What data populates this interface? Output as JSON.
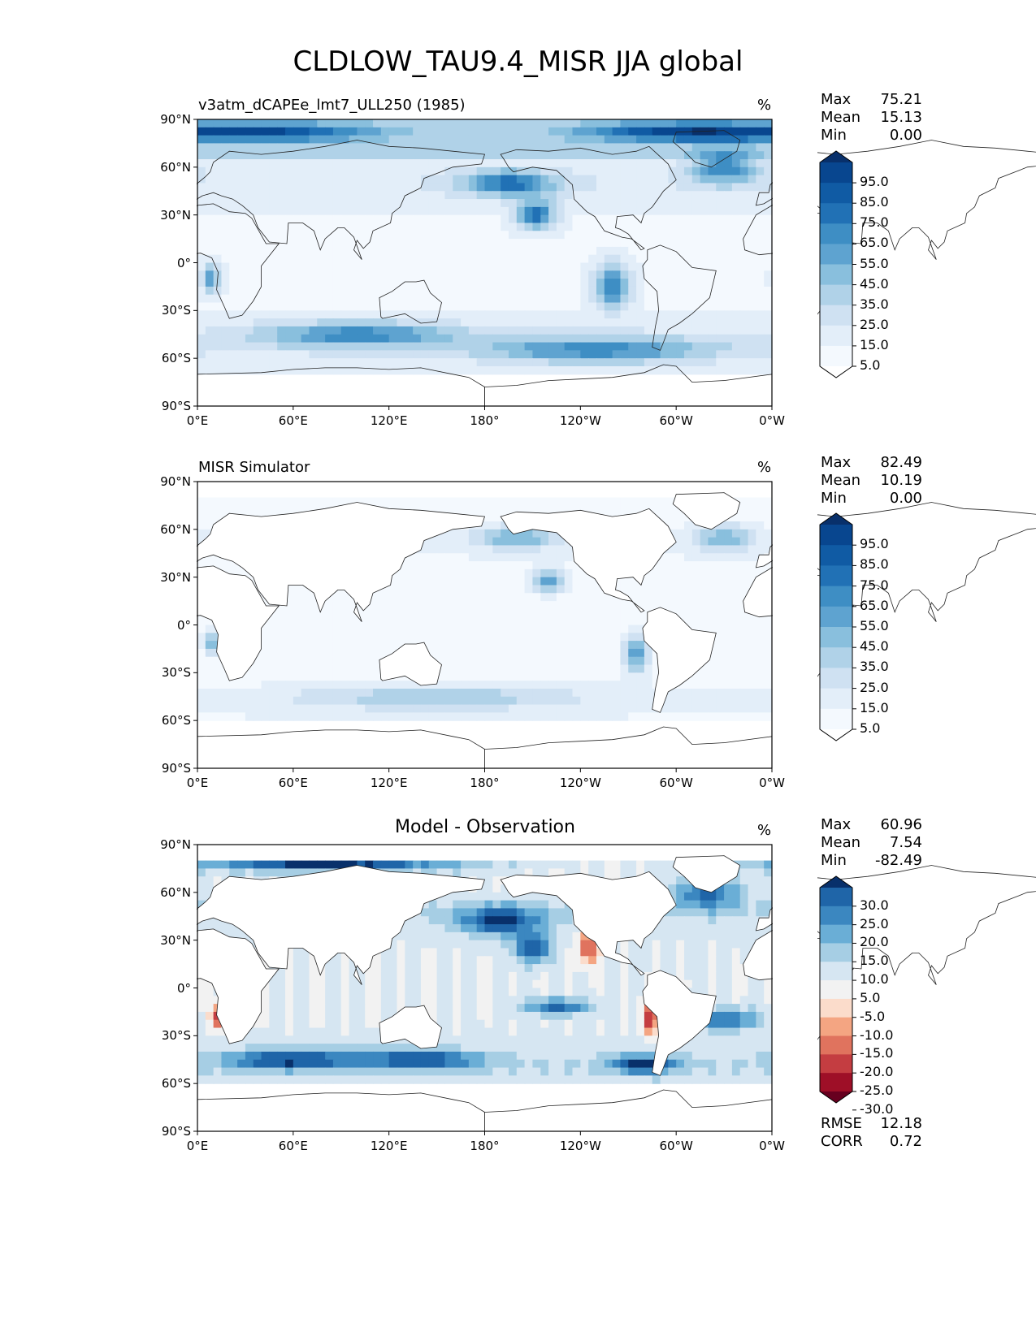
{
  "figure_title": "CLDLOW_TAU9.4_MISR JJA global",
  "chart_data": [
    {
      "type": "heatmap",
      "map_projection": "plate carree",
      "title": "v3atm_dCAPEe_lmt7_ULL250 (1985)",
      "units": "%",
      "x_tick_labels": [
        "0°E",
        "60°E",
        "120°E",
        "180°",
        "120°W",
        "60°W",
        "0°W"
      ],
      "y_tick_labels": [
        "90°N",
        "60°N",
        "30°N",
        "0°",
        "30°S",
        "60°S",
        "90°S"
      ],
      "xlim": [
        0,
        360
      ],
      "ylim": [
        -90,
        90
      ],
      "stats": [
        {
          "label": "Max",
          "value": "75.21"
        },
        {
          "label": "Mean",
          "value": "15.13"
        },
        {
          "label": "Min",
          "value": "0.00"
        }
      ],
      "colorbar": {
        "labels": [
          "95.0",
          "85.0",
          "75.0",
          "65.0",
          "55.0",
          "45.0",
          "35.0",
          "25.0",
          "15.0",
          "5.0"
        ],
        "colors": [
          "#08306b",
          "#08468f",
          "#105ba4",
          "#2171b5",
          "#3e8ec4",
          "#5ea3d0",
          "#89bfdd",
          "#b0d2e8",
          "#cfe1f2",
          "#e3eef9",
          "#f4f9fe",
          "#ffffff"
        ]
      }
    },
    {
      "type": "heatmap",
      "map_projection": "plate carree",
      "title": "MISR Simulator",
      "units": "%",
      "x_tick_labels": [
        "0°E",
        "60°E",
        "120°E",
        "180°",
        "120°W",
        "60°W",
        "0°W"
      ],
      "y_tick_labels": [
        "90°N",
        "60°N",
        "30°N",
        "0°",
        "30°S",
        "60°S",
        "90°S"
      ],
      "xlim": [
        0,
        360
      ],
      "ylim": [
        -90,
        90
      ],
      "stats": [
        {
          "label": "Max",
          "value": "82.49"
        },
        {
          "label": "Mean",
          "value": "10.19"
        },
        {
          "label": "Min",
          "value": "0.00"
        }
      ],
      "colorbar": {
        "labels": [
          "95.0",
          "85.0",
          "75.0",
          "65.0",
          "55.0",
          "45.0",
          "35.0",
          "25.0",
          "15.0",
          "5.0"
        ],
        "colors": [
          "#08306b",
          "#08468f",
          "#105ba4",
          "#2171b5",
          "#3e8ec4",
          "#5ea3d0",
          "#89bfdd",
          "#b0d2e8",
          "#cfe1f2",
          "#e3eef9",
          "#f4f9fe",
          "#ffffff"
        ]
      }
    },
    {
      "type": "heatmap",
      "map_projection": "plate carree",
      "title": "Model - Observation",
      "units": "%",
      "x_tick_labels": [
        "0°E",
        "60°E",
        "120°E",
        "180°",
        "120°W",
        "60°W",
        "0°W"
      ],
      "y_tick_labels": [
        "90°N",
        "60°N",
        "30°N",
        "0°",
        "30°S",
        "60°S",
        "90°S"
      ],
      "xlim": [
        0,
        360
      ],
      "ylim": [
        -90,
        90
      ],
      "stats": [
        {
          "label": "Max",
          "value": "60.96"
        },
        {
          "label": "Mean",
          "value": "7.54"
        },
        {
          "label": "Min",
          "value": "-82.49"
        }
      ],
      "extra_stats": [
        {
          "label": "RMSE",
          "value": "12.18"
        },
        {
          "label": "CORR",
          "value": "0.72"
        }
      ],
      "colorbar": {
        "labels": [
          "30.0",
          "25.0",
          "20.0",
          "15.0",
          "10.0",
          "5.0",
          "-5.0",
          "-10.0",
          "-15.0",
          "-20.0",
          "-25.0",
          "-30.0"
        ],
        "colors": [
          "#08306b",
          "#1f65a8",
          "#3b87c0",
          "#6aaed6",
          "#a6cee4",
          "#d6e6f2",
          "#f2f2f2",
          "#fbdccb",
          "#f4a582",
          "#e0735e",
          "#c43d41",
          "#9e0f27",
          "#67001f"
        ]
      }
    }
  ]
}
